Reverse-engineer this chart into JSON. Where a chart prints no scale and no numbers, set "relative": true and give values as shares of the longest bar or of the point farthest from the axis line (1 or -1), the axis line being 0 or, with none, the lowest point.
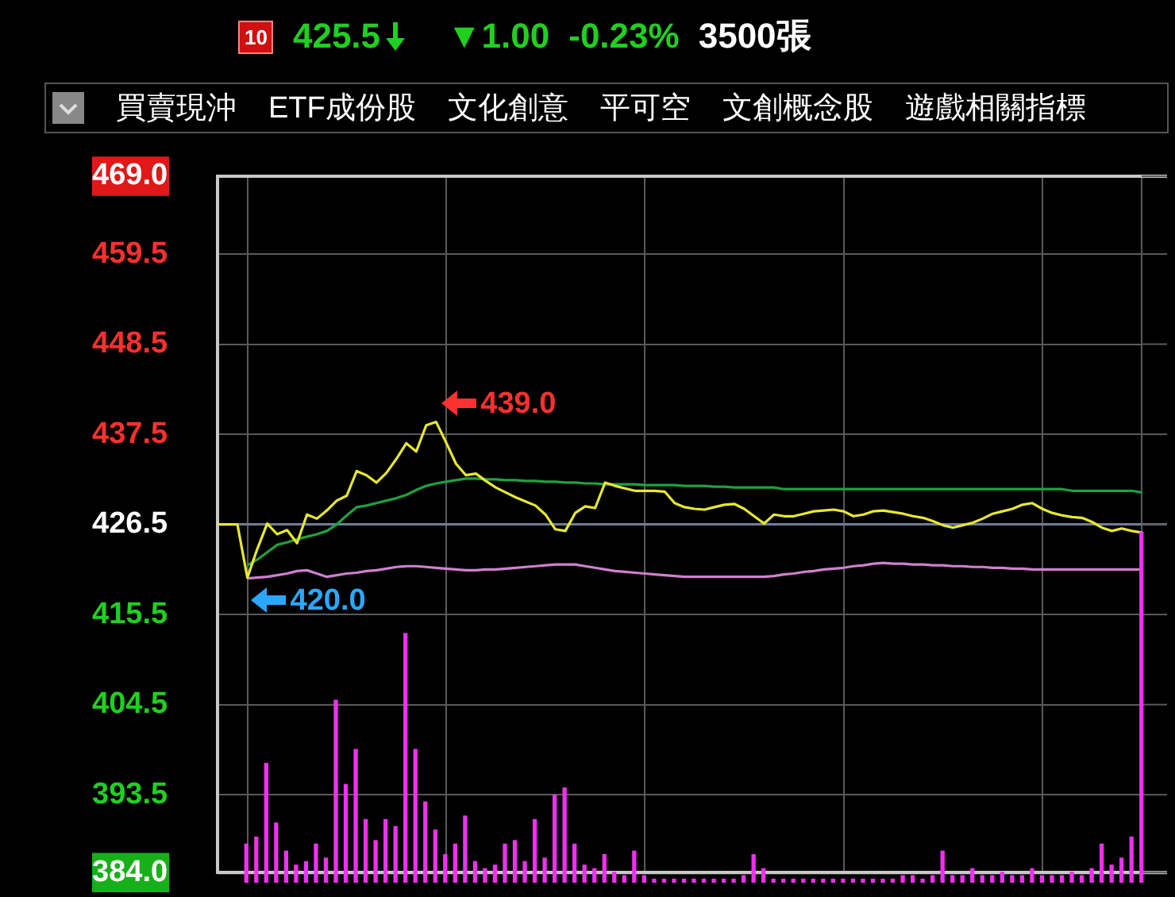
{
  "chart_data": [
    {
      "type": "line",
      "ylim": [
        384,
        469
      ],
      "yticks": [
        {
          "value": 469,
          "label": "469.0"
        },
        459.5,
        448.5,
        437.5,
        426.5,
        415.5,
        404.5,
        393.5,
        {
          "value": 384,
          "label": "384.0"
        }
      ],
      "categories": [
        null,
        null,
        null,
        null,
        null,
        null,
        null,
        null,
        null,
        null,
        null,
        null,
        null,
        null,
        null,
        null,
        null,
        null,
        null,
        null,
        null,
        null,
        null,
        null,
        null,
        null,
        null,
        null,
        null,
        null,
        null,
        null,
        null,
        null,
        null,
        null,
        null,
        null,
        null,
        null,
        null,
        null,
        null,
        null,
        null,
        null,
        null,
        null,
        null,
        null,
        null,
        null,
        null,
        null,
        null,
        null,
        null,
        null,
        null,
        null,
        null,
        null,
        null,
        null,
        null,
        null,
        null,
        null,
        null,
        null,
        null,
        null,
        null,
        null,
        null,
        null,
        null,
        null,
        null,
        null,
        null,
        null,
        null,
        null,
        null,
        null,
        null,
        null,
        null,
        null,
        null,
        null,
        null,
        null
      ],
      "tick_labels": "y",
      "grid": true,
      "marker": "none",
      "series": [
        {
          "color": "#e8e830",
          "values": [
            426.5,
            426.5,
            426.5,
            420.0,
            423.5,
            426.6,
            425.3,
            425.8,
            424.2,
            427.7,
            427.2,
            428.2,
            429.4,
            430.0,
            433.0,
            432.5,
            431.6,
            432.8,
            434.5,
            436.4,
            435.4,
            438.6,
            439.0,
            436.5,
            433.9,
            432.5,
            432.7,
            431.8,
            431.0,
            430.4,
            429.8,
            429.3,
            428.8,
            427.7,
            425.9,
            425.7,
            427.9,
            428.7,
            428.5,
            431.6,
            431.2,
            430.9,
            430.6,
            430.6,
            430.6,
            430.5,
            429.1,
            428.6,
            428.4,
            428.3,
            428.6,
            428.9,
            429.0,
            428.4,
            427.5,
            426.6,
            427.7,
            427.5,
            427.5,
            427.8,
            428.1,
            428.2,
            428.3,
            428.1,
            427.5,
            427.7,
            428.1,
            428.2,
            428.0,
            427.8,
            427.5,
            427.3,
            426.9,
            426.4,
            426.1,
            426.4,
            426.7,
            427.2,
            427.8,
            428.1,
            428.4,
            428.9,
            429.1,
            428.4,
            427.9,
            427.6,
            427.4,
            427.3,
            426.8,
            426.1,
            425.7,
            426.0,
            425.7,
            425.5
          ]
        },
        {
          "color": "#20a040",
          "values": [
            null,
            null,
            null,
            421.5,
            422.2,
            423.1,
            424.0,
            424.3,
            424.7,
            425.0,
            425.3,
            425.7,
            426.5,
            427.6,
            428.6,
            428.8,
            429.1,
            429.4,
            429.7,
            430.1,
            430.7,
            431.2,
            431.5,
            431.7,
            431.9,
            432.1,
            432.1,
            432.0,
            432.0,
            431.9,
            431.9,
            431.8,
            431.8,
            431.7,
            431.7,
            431.6,
            431.6,
            431.5,
            431.5,
            431.4,
            431.4,
            431.4,
            431.4,
            431.3,
            431.3,
            431.3,
            431.3,
            431.2,
            431.2,
            431.2,
            431.1,
            431.1,
            431.0,
            431.0,
            431.0,
            431.0,
            431.0,
            430.8,
            430.8,
            430.8,
            430.8,
            430.8,
            430.8,
            430.8,
            430.8,
            430.8,
            430.8,
            430.8,
            430.8,
            430.8,
            430.8,
            430.8,
            430.8,
            430.8,
            430.8,
            430.8,
            430.8,
            430.8,
            430.8,
            430.8,
            430.8,
            430.8,
            430.8,
            430.8,
            430.8,
            430.8,
            430.6,
            430.6,
            430.6,
            430.6,
            430.6,
            430.6,
            430.6,
            430.4
          ]
        },
        {
          "color": "#d080d0",
          "values": [
            null,
            null,
            null,
            419.9,
            420.0,
            420.1,
            420.3,
            420.5,
            420.8,
            420.9,
            420.5,
            420.1,
            420.3,
            420.5,
            420.6,
            420.8,
            420.9,
            421.1,
            421.3,
            421.4,
            421.4,
            421.3,
            421.2,
            421.1,
            421.0,
            420.9,
            420.9,
            421.0,
            421.0,
            421.1,
            421.2,
            421.3,
            421.4,
            421.5,
            421.6,
            421.6,
            421.6,
            421.4,
            421.2,
            421.0,
            420.8,
            420.7,
            420.6,
            420.5,
            420.4,
            420.3,
            420.2,
            420.1,
            420.1,
            420.1,
            420.1,
            420.1,
            420.1,
            420.1,
            420.1,
            420.1,
            420.2,
            420.4,
            420.5,
            420.7,
            420.8,
            421.0,
            421.1,
            421.2,
            421.4,
            421.5,
            421.7,
            421.8,
            421.7,
            421.7,
            421.6,
            421.6,
            421.5,
            421.5,
            421.4,
            421.4,
            421.3,
            421.3,
            421.2,
            421.2,
            421.1,
            421.1,
            421.0,
            421.0,
            421.0,
            421.0,
            421.0,
            421.0,
            421.0,
            421.0,
            421.0,
            421.0,
            421.0,
            421.0
          ]
        }
      ],
      "ref_lines": [
        {
          "axis": "y",
          "value": 426.5,
          "color": "#6a8098"
        }
      ],
      "annotations": [
        "10",
        "425.5",
        "▼1.00",
        "-0.23%",
        "3500張",
        "買賣現沖",
        "ETF成份股",
        "文化創意",
        "平可空",
        "文創概念股",
        "遊戲相關指標",
        "439.0",
        {
          "text": "420.0",
          "y": 420.0
        }
      ]
    },
    {
      "type": "bar",
      "relative": true,
      "tick_labels": false,
      "color": "#f030f0",
      "categories": [
        null,
        null,
        null,
        null,
        null,
        null,
        null,
        null,
        null,
        null,
        null,
        null,
        null,
        null,
        null,
        null,
        null,
        null,
        null,
        null,
        null,
        null,
        null,
        null,
        null,
        null,
        null,
        null,
        null,
        null,
        null,
        null,
        null,
        null,
        null,
        null,
        null,
        null,
        null,
        null,
        null,
        null,
        null,
        null,
        null,
        null,
        null,
        null,
        null,
        null,
        null,
        null,
        null,
        null,
        null,
        null,
        null,
        null,
        null,
        null,
        null,
        null,
        null,
        null,
        null,
        null,
        null,
        null,
        null,
        null,
        null,
        null,
        null,
        null,
        null,
        null,
        null,
        null,
        null,
        null,
        null,
        null,
        null,
        null,
        null,
        null,
        null,
        null,
        null,
        null,
        null
      ],
      "values": [
        0.11,
        0.13,
        0.34,
        0.17,
        0.09,
        0.05,
        0.06,
        0.11,
        0.07,
        0.52,
        0.28,
        0.38,
        0.18,
        0.12,
        0.18,
        0.16,
        0.71,
        0.38,
        0.23,
        0.15,
        0.08,
        0.11,
        0.19,
        0.06,
        0.04,
        0.05,
        0.11,
        0.12,
        0.06,
        0.18,
        0.07,
        0.25,
        0.27,
        0.11,
        0.05,
        0.04,
        0.08,
        0.03,
        0.02,
        0.09,
        0.02,
        0.01,
        0.01,
        0.01,
        0.01,
        0.01,
        0.01,
        0.01,
        0.01,
        0.01,
        0.02,
        0.08,
        0.04,
        0.01,
        0.01,
        0.01,
        0.01,
        0.01,
        0.01,
        0.01,
        0.01,
        0.01,
        0.01,
        0.01,
        0.01,
        0.01,
        0.02,
        0.02,
        0.01,
        0.02,
        0.09,
        0.02,
        0.02,
        0.04,
        0.02,
        0.02,
        0.03,
        0.02,
        0.02,
        0.04,
        0.02,
        0.02,
        0.02,
        0.03,
        0.02,
        0.04,
        0.11,
        0.05,
        0.07,
        0.13,
        1
      ]
    }
  ]
}
